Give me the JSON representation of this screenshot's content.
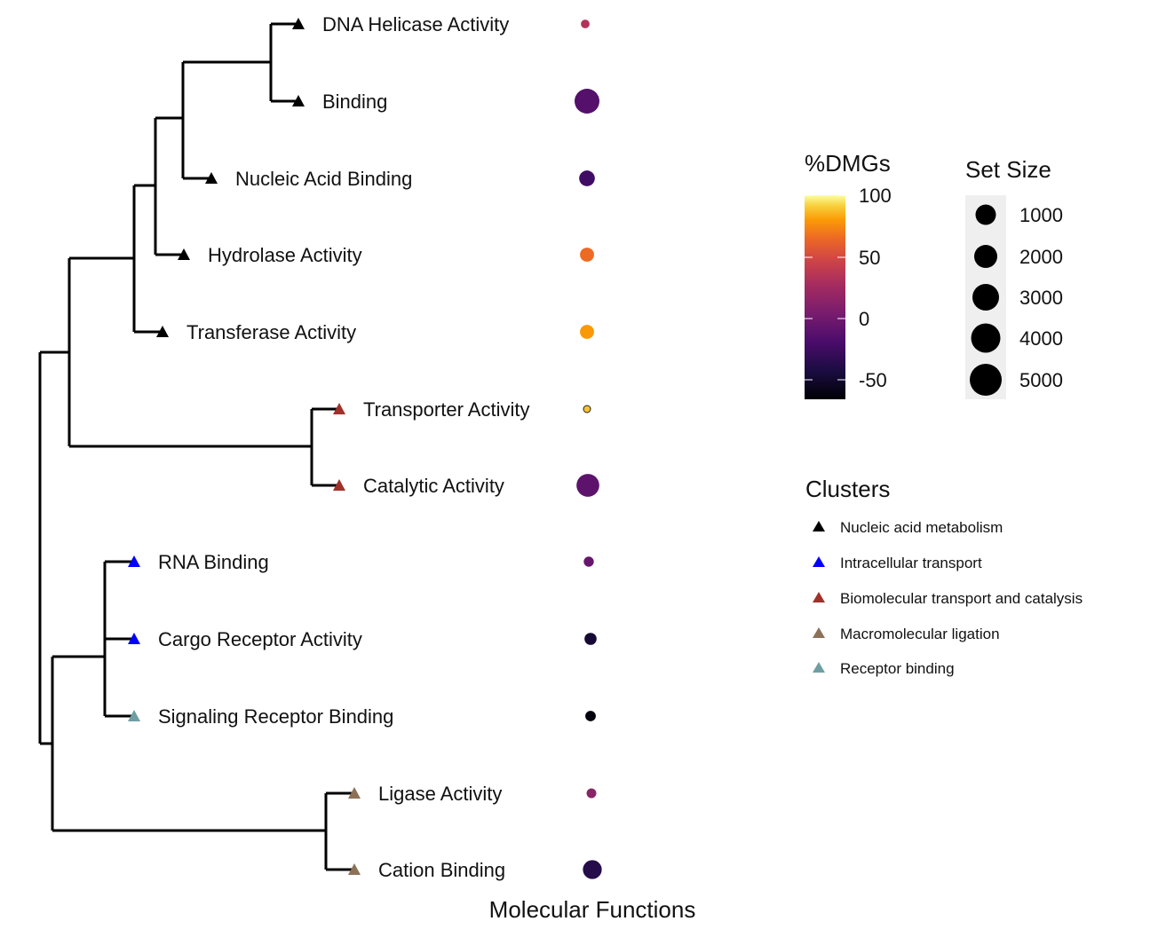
{
  "chart_data": {
    "type": "dendrogram-dotplot",
    "xlabel": "Molecular Functions",
    "terms": [
      {
        "name": "DNA Helicase Activity",
        "cluster": "Nucleic acid metabolism",
        "pct_dmgs": 40,
        "set_size": 150
      },
      {
        "name": "Binding",
        "cluster": "Nucleic acid metabolism",
        "pct_dmgs": -10,
        "set_size": 5000
      },
      {
        "name": "Nucleic Acid Binding",
        "cluster": "Nucleic acid metabolism",
        "pct_dmgs": -20,
        "set_size": 1400
      },
      {
        "name": "Hydrolase Activity",
        "cluster": "Nucleic acid metabolism",
        "pct_dmgs": 75,
        "set_size": 1000
      },
      {
        "name": "Transferase Activity",
        "cluster": "Nucleic acid metabolism",
        "pct_dmgs": 90,
        "set_size": 1000
      },
      {
        "name": "Transporter Activity",
        "cluster": "Biomolecular transport and catalysis",
        "pct_dmgs": 100,
        "set_size": 500
      },
      {
        "name": "Catalytic Activity",
        "cluster": "Biomolecular transport and catalysis",
        "pct_dmgs": -5,
        "set_size": 4000
      },
      {
        "name": "RNA Binding",
        "cluster": "Intracellular transport",
        "pct_dmgs": 0,
        "set_size": 300
      },
      {
        "name": "Cargo Receptor Activity",
        "cluster": "Intracellular transport",
        "pct_dmgs": -45,
        "set_size": 600
      },
      {
        "name": "Signaling Receptor Binding",
        "cluster": "Receptor binding",
        "pct_dmgs": -60,
        "set_size": 350
      },
      {
        "name": "Ligase Activity",
        "cluster": "Macromolecular ligation",
        "pct_dmgs": 20,
        "set_size": 250
      },
      {
        "name": "Cation Binding",
        "cluster": "Macromolecular ligation",
        "pct_dmgs": -35,
        "set_size": 2400
      }
    ],
    "legend_color": {
      "title": "%DMGs",
      "ticks": [
        100,
        50,
        0,
        -50
      ],
      "range": [
        -65,
        112
      ]
    },
    "legend_size": {
      "title": "Set Size",
      "values": [
        1000,
        2000,
        3000,
        4000,
        5000
      ]
    },
    "legend_clusters": {
      "title": "Clusters",
      "items": [
        {
          "name": "Nucleic acid metabolism",
          "color": "#000000"
        },
        {
          "name": "Intracellular transport",
          "color": "#0000ff"
        },
        {
          "name": "Biomolecular transport and catalysis",
          "color": "#a0312a"
        },
        {
          "name": "Macromolecular ligation",
          "color": "#8c7156"
        },
        {
          "name": "Receptor binding",
          "color": "#6f9ea2"
        }
      ]
    }
  }
}
